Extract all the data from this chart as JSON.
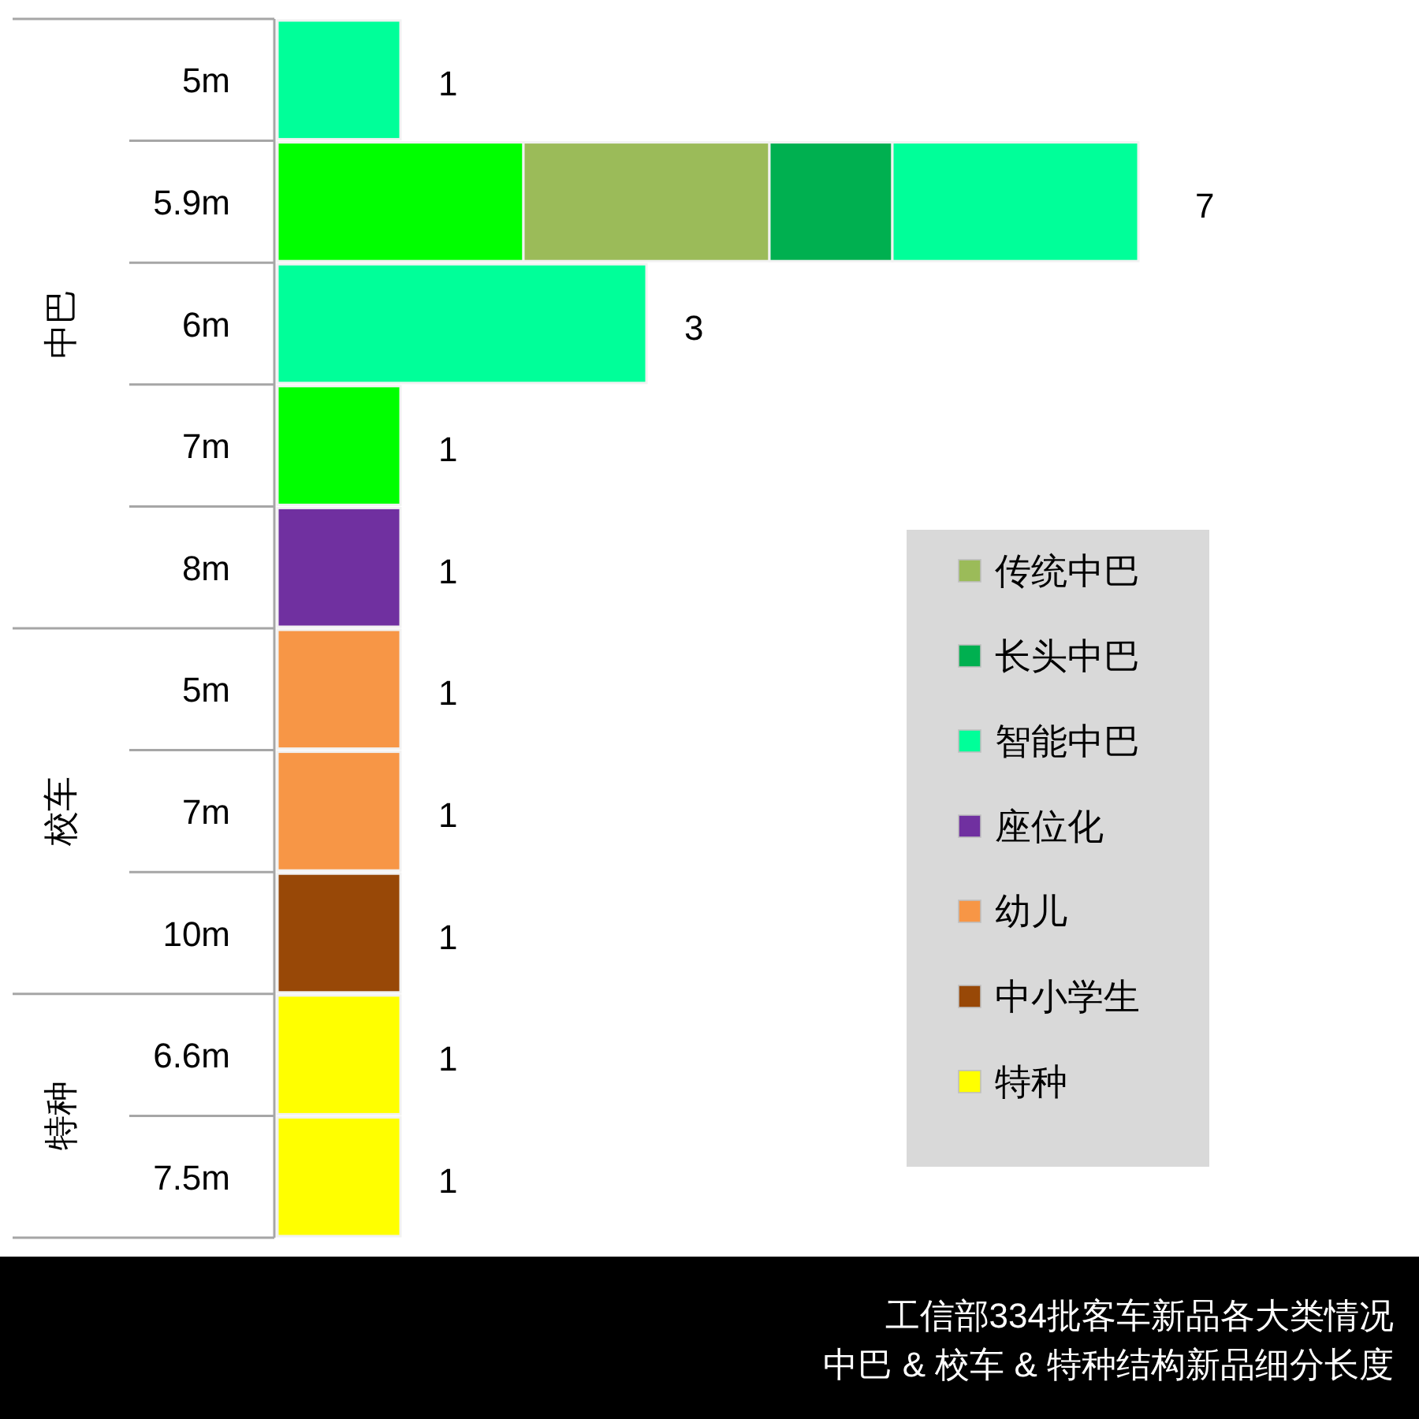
{
  "chart_data": {
    "type": "bar",
    "orientation": "horizontal",
    "stacked": true,
    "title": "工信部334批客车新品各大类情况",
    "subtitle": "中巴 & 校车 & 特种结构新品细分长度",
    "categories": [
      "5m",
      "5.9m",
      "6m",
      "7m",
      "8m",
      "5m",
      "7m",
      "10m",
      "6.6m",
      "7.5m"
    ],
    "series": [
      {
        "color": "#00ff00",
        "values": [
          null,
          2,
          null,
          1,
          null,
          null,
          null,
          null,
          null,
          null
        ],
        "value_labels": [
          null,
          null,
          null,
          "1",
          null,
          null,
          null,
          null,
          null,
          null
        ]
      },
      {
        "name": "传统中巴",
        "color": "#9bbb59",
        "values": [
          null,
          2,
          null,
          null,
          null,
          null,
          null,
          null,
          null,
          null
        ]
      },
      {
        "name": "长头中巴",
        "color": "#00b050",
        "values": [
          null,
          1,
          null,
          null,
          null,
          null,
          null,
          null,
          null,
          null
        ]
      },
      {
        "name": "智能中巴",
        "color": "#00ff99",
        "values": [
          1,
          2,
          3,
          null,
          null,
          null,
          null,
          null,
          null,
          null
        ],
        "value_labels": [
          "1",
          null,
          "3",
          null,
          null,
          null,
          null,
          null,
          null,
          null
        ]
      },
      {
        "name": "座位化",
        "color": "#7030a0",
        "values": [
          null,
          null,
          null,
          null,
          1,
          null,
          null,
          null,
          null,
          null
        ],
        "value_labels": [
          null,
          null,
          null,
          null,
          "1",
          null,
          null,
          null,
          null,
          null
        ]
      },
      {
        "name": "幼儿",
        "color": "#f79646",
        "values": [
          null,
          null,
          null,
          null,
          null,
          1,
          1,
          null,
          null,
          null
        ],
        "value_labels": [
          null,
          null,
          null,
          null,
          null,
          "1",
          "1",
          null,
          null,
          null
        ]
      },
      {
        "name": "中小学生",
        "color": "#984807",
        "values": [
          null,
          null,
          null,
          null,
          null,
          null,
          null,
          1,
          null,
          null
        ],
        "value_labels": [
          null,
          null,
          null,
          null,
          null,
          null,
          null,
          "1",
          null,
          null
        ]
      },
      {
        "name": "特种",
        "color": "#ffff00",
        "values": [
          null,
          null,
          null,
          null,
          null,
          null,
          null,
          null,
          1,
          1
        ],
        "value_labels": [
          null,
          null,
          null,
          null,
          null,
          null,
          null,
          null,
          "1",
          "1"
        ]
      }
    ],
    "totals": [
      null,
      "7",
      null,
      null,
      null,
      null,
      null,
      null,
      null,
      null
    ],
    "annotations": [
      "中巴",
      "校车",
      "特种"
    ],
    "legend": "bottom right"
  }
}
